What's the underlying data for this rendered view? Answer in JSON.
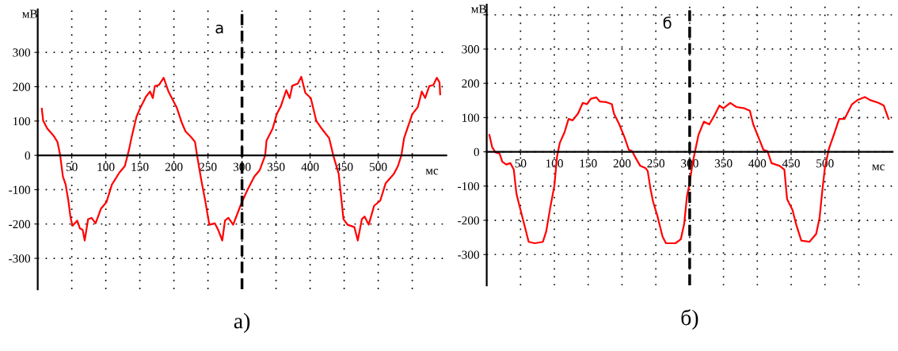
{
  "chart_data": [
    {
      "type": "line",
      "ylabel": "мВ",
      "xlabel": "мс",
      "annotations": [
        "а",
        "а)"
      ],
      "xlim": [
        0,
        600
      ],
      "ylim": [
        -390,
        425
      ],
      "xticks": [
        50,
        100,
        150,
        200,
        250,
        300,
        350,
        400,
        450,
        500,
        {
          "value": 550,
          "label": null
        }
      ],
      "yticks": [
        -300,
        -200,
        -100,
        0,
        100,
        200,
        300
      ],
      "grid": true,
      "marker": "none",
      "line_style": "solid",
      "ref_lines": [
        {
          "axis": "x",
          "value": 300,
          "label": null,
          "color": "#000000",
          "line_style": "dashed"
        }
      ],
      "series": [
        {
          "color": "#ff0000",
          "x": [
            6,
            8,
            14,
            23,
            29,
            33,
            37,
            41,
            45,
            48,
            51,
            58,
            62,
            66,
            69,
            74,
            79,
            85,
            93,
            101,
            109,
            120,
            128,
            134,
            138,
            145,
            151,
            159,
            165,
            169,
            172,
            178,
            185,
            192,
            198,
            204,
            212,
            217,
            225,
            231,
            234,
            240,
            246,
            252,
            260,
            265,
            271,
            275,
            280,
            287,
            299,
            308,
            318,
            326,
            334,
            336,
            345,
            351,
            357,
            365,
            370,
            374,
            382,
            387,
            393,
            401,
            409,
            417,
            428,
            434,
            442,
            449,
            455,
            465,
            470,
            476,
            480,
            486,
            494,
            503,
            511,
            523,
            529,
            534,
            538,
            550,
            558,
            564,
            569,
            575,
            581,
            586,
            590,
            591
          ],
          "values": [
            136,
            101,
            78,
            58,
            39,
            0,
            -62,
            -85,
            -132,
            -178,
            -205,
            -190,
            -213,
            -217,
            -248,
            -186,
            -182,
            -198,
            -155,
            -136,
            -85,
            -50,
            -31,
            16,
            54,
            112,
            140,
            171,
            186,
            167,
            202,
            205,
            226,
            186,
            163,
            140,
            93,
            70,
            54,
            39,
            0,
            -70,
            -132,
            -202,
            -198,
            -217,
            -248,
            -190,
            -182,
            -202,
            -140,
            -101,
            -62,
            -43,
            0,
            43,
            78,
            120,
            143,
            190,
            167,
            203,
            209,
            229,
            182,
            167,
            101,
            78,
            50,
            0,
            -54,
            -186,
            -202,
            -209,
            -248,
            -186,
            -178,
            -202,
            -147,
            -132,
            -81,
            -54,
            -31,
            0,
            50,
            120,
            140,
            186,
            167,
            202,
            205,
            226,
            213,
            178
          ]
        }
      ]
    },
    {
      "type": "line",
      "ylabel": "мВ",
      "xlabel": "мс",
      "annotations": [
        "б",
        "б)"
      ],
      "xlim": [
        0,
        600
      ],
      "ylim": [
        -390,
        430
      ],
      "xticks": [
        50,
        100,
        150,
        200,
        250,
        300,
        350,
        400,
        450,
        500,
        {
          "value": 550,
          "label": null
        }
      ],
      "yticks": [
        -300,
        -200,
        -100,
        0,
        100,
        200,
        300,
        {
          "value": 400,
          "label": null
        }
      ],
      "grid": true,
      "marker": "none",
      "line_style": "solid",
      "ref_lines": [
        {
          "axis": "x",
          "value": 300,
          "label": null,
          "color": "#000000",
          "line_style": "dashed"
        }
      ],
      "series": [
        {
          "color": "#ff0000",
          "x": [
            4,
            8,
            13,
            19,
            23,
            29,
            35,
            40,
            44,
            50,
            56,
            62,
            71,
            83,
            88,
            94,
            100,
            104,
            108,
            115,
            121,
            127,
            135,
            142,
            148,
            154,
            162,
            167,
            177,
            185,
            188,
            196,
            204,
            210,
            215,
            221,
            227,
            235,
            238,
            242,
            246,
            252,
            260,
            265,
            279,
            287,
            292,
            296,
            300,
            304,
            308,
            313,
            321,
            329,
            336,
            344,
            350,
            360,
            369,
            381,
            389,
            394,
            402,
            409,
            415,
            421,
            433,
            440,
            444,
            452,
            458,
            465,
            477,
            487,
            492,
            496,
            500,
            506,
            513,
            521,
            529,
            540,
            548,
            559,
            567,
            579,
            587,
            594
          ],
          "values": [
            49,
            14,
            -2,
            -5,
            -29,
            -37,
            -33,
            -52,
            -123,
            -170,
            -216,
            -263,
            -267,
            -263,
            -232,
            -162,
            -99,
            -13,
            26,
            57,
            96,
            92,
            112,
            143,
            139,
            155,
            159,
            147,
            145,
            139,
            112,
            80,
            41,
            6,
            2,
            -21,
            -41,
            -48,
            -56,
            -107,
            -146,
            -185,
            -248,
            -267,
            -267,
            -255,
            -209,
            -130,
            -91,
            -37,
            2,
            49,
            88,
            80,
            104,
            135,
            127,
            143,
            131,
            127,
            120,
            80,
            41,
            6,
            2,
            -33,
            -41,
            -52,
            -138,
            -170,
            -216,
            -259,
            -263,
            -240,
            -193,
            -115,
            -45,
            10,
            49,
            96,
            96,
            139,
            151,
            160,
            151,
            143,
            135,
            96
          ]
        }
      ]
    }
  ]
}
